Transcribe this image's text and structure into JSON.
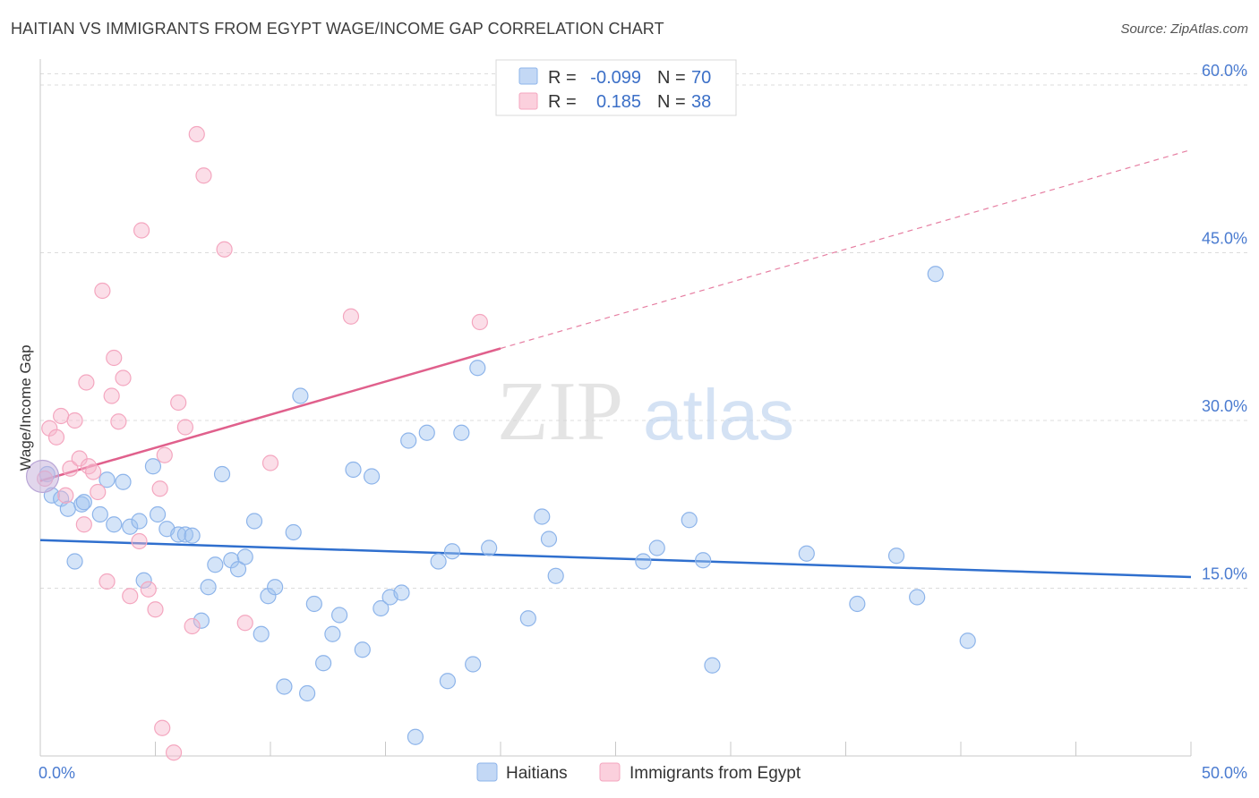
{
  "chart_data": {
    "type": "scatter",
    "title": "HAITIAN VS IMMIGRANTS FROM EGYPT WAGE/INCOME GAP CORRELATION CHART",
    "source": "Source: ZipAtlas.com",
    "ylabel": "Wage/Income Gap",
    "watermark": {
      "zip": "ZIP",
      "atlas": "atlas"
    },
    "xlim": [
      0,
      50
    ],
    "ylim": [
      0,
      62
    ],
    "x_tick_labels": [
      "0.0%",
      "50.0%"
    ],
    "y_ticks": [
      {
        "value": 15,
        "label": "15.0%"
      },
      {
        "value": 30,
        "label": "30.0%"
      },
      {
        "value": 45,
        "label": "45.0%"
      },
      {
        "value": 60,
        "label": "60.0%"
      }
    ],
    "grid": true,
    "legend_position": "top-center",
    "series": [
      {
        "name": "Haitians",
        "color": "#8db4ea",
        "line_color": "#2f6fce",
        "stats": {
          "r_label": "R =",
          "r": "-0.099",
          "n_label": "N =",
          "n": "70"
        },
        "trend": {
          "x0": 0,
          "y0": 19.3,
          "x1": 50,
          "y1": 16.0,
          "dashed_to": null
        },
        "points": [
          [
            0.3,
            25.2
          ],
          [
            0.5,
            23.3
          ],
          [
            0.9,
            23.0
          ],
          [
            1.2,
            22.1
          ],
          [
            1.5,
            17.4
          ],
          [
            1.8,
            22.5
          ],
          [
            1.9,
            22.7
          ],
          [
            2.6,
            21.6
          ],
          [
            2.9,
            24.7
          ],
          [
            3.2,
            20.7
          ],
          [
            3.6,
            24.5
          ],
          [
            3.9,
            20.5
          ],
          [
            4.3,
            21.0
          ],
          [
            4.5,
            15.7
          ],
          [
            4.9,
            25.9
          ],
          [
            5.1,
            21.6
          ],
          [
            5.5,
            20.3
          ],
          [
            6.0,
            19.8
          ],
          [
            6.3,
            19.8
          ],
          [
            6.6,
            19.7
          ],
          [
            7.0,
            12.1
          ],
          [
            7.3,
            15.1
          ],
          [
            7.6,
            17.1
          ],
          [
            7.9,
            25.2
          ],
          [
            8.3,
            17.5
          ],
          [
            8.6,
            16.7
          ],
          [
            8.9,
            17.8
          ],
          [
            9.3,
            21.0
          ],
          [
            9.6,
            10.9
          ],
          [
            9.9,
            14.3
          ],
          [
            10.2,
            15.1
          ],
          [
            10.6,
            6.2
          ],
          [
            11.0,
            20.0
          ],
          [
            11.3,
            32.2
          ],
          [
            11.6,
            5.6
          ],
          [
            11.9,
            13.6
          ],
          [
            12.3,
            8.3
          ],
          [
            12.7,
            10.9
          ],
          [
            13.0,
            12.6
          ],
          [
            13.6,
            25.6
          ],
          [
            14.0,
            9.5
          ],
          [
            14.4,
            25.0
          ],
          [
            14.8,
            13.2
          ],
          [
            15.2,
            14.2
          ],
          [
            15.7,
            14.6
          ],
          [
            16.0,
            28.2
          ],
          [
            16.3,
            1.7
          ],
          [
            16.8,
            28.9
          ],
          [
            17.3,
            17.4
          ],
          [
            17.7,
            6.7
          ],
          [
            17.9,
            18.3
          ],
          [
            18.3,
            28.9
          ],
          [
            18.8,
            8.2
          ],
          [
            19.0,
            34.7
          ],
          [
            19.5,
            18.6
          ],
          [
            21.2,
            12.3
          ],
          [
            21.8,
            21.4
          ],
          [
            22.4,
            16.1
          ],
          [
            22.1,
            19.4
          ],
          [
            26.2,
            17.4
          ],
          [
            26.8,
            18.6
          ],
          [
            28.2,
            21.1
          ],
          [
            28.8,
            17.5
          ],
          [
            29.2,
            8.1
          ],
          [
            33.3,
            18.1
          ],
          [
            35.5,
            13.6
          ],
          [
            37.2,
            17.9
          ],
          [
            38.1,
            14.2
          ],
          [
            38.9,
            43.1
          ],
          [
            40.3,
            10.3
          ]
        ]
      },
      {
        "name": "Immigrants from Egypt",
        "color": "#f4a6bf",
        "line_color": "#e0608c",
        "stats": {
          "r_label": "R =",
          "r": "0.185",
          "n_label": "N =",
          "n": "38"
        },
        "trend": {
          "x0": 0,
          "y0": 24.6,
          "x1": 50,
          "y1": 54.2,
          "solid_to": 20.0
        },
        "points": [
          [
            0.2,
            24.8
          ],
          [
            0.4,
            29.3
          ],
          [
            0.7,
            28.5
          ],
          [
            0.9,
            30.4
          ],
          [
            1.1,
            23.3
          ],
          [
            1.3,
            25.7
          ],
          [
            1.5,
            30.0
          ],
          [
            1.7,
            26.6
          ],
          [
            1.9,
            20.7
          ],
          [
            2.1,
            25.9
          ],
          [
            2.3,
            25.4
          ],
          [
            2.5,
            23.6
          ],
          [
            2.7,
            41.6
          ],
          [
            2.9,
            15.6
          ],
          [
            3.1,
            32.2
          ],
          [
            3.2,
            35.6
          ],
          [
            3.4,
            29.9
          ],
          [
            3.6,
            33.8
          ],
          [
            3.9,
            14.3
          ],
          [
            4.3,
            19.2
          ],
          [
            4.4,
            47.0
          ],
          [
            4.7,
            14.9
          ],
          [
            5.0,
            13.1
          ],
          [
            5.4,
            26.9
          ],
          [
            5.2,
            23.9
          ],
          [
            5.3,
            2.5
          ],
          [
            5.8,
            0.3
          ],
          [
            6.0,
            31.6
          ],
          [
            6.3,
            29.4
          ],
          [
            6.6,
            11.6
          ],
          [
            6.8,
            55.6
          ],
          [
            7.1,
            51.9
          ],
          [
            8.0,
            45.3
          ],
          [
            8.9,
            11.9
          ],
          [
            10.0,
            26.2
          ],
          [
            13.5,
            39.3
          ],
          [
            19.1,
            38.8
          ],
          [
            2.0,
            33.4
          ]
        ]
      }
    ]
  }
}
